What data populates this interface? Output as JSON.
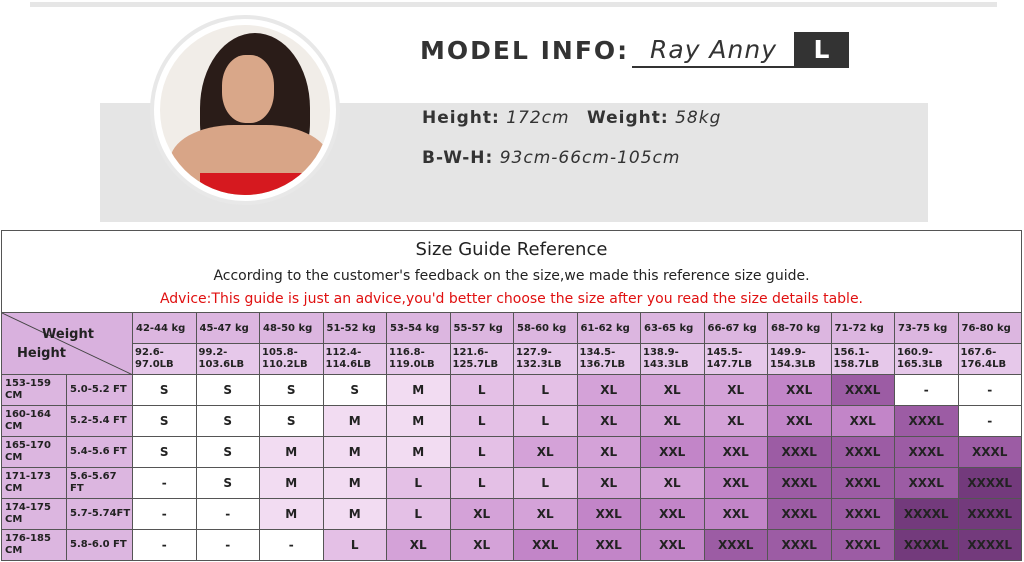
{
  "model": {
    "title": "MODEL INFO:",
    "name": "Ray Anny",
    "size": "L",
    "height_label": "Height:",
    "height": "172cm",
    "weight_label": "Weight:",
    "weight": "58kg",
    "bwh_label": "B-W-H:",
    "bwh": "93cm-66cm-105cm"
  },
  "guide": {
    "title": "Size Guide Reference",
    "subtitle": "According to the customer's feedback on the size,we made this reference size guide.",
    "advice": "Advice:This guide is just an advice,you'd better choose the size after you read the size details table.",
    "corner_weight": "Weight",
    "corner_height": "Height",
    "weights_kg": [
      "42-44 kg",
      "45-47 kg",
      "48-50 kg",
      "51-52 kg",
      "53-54 kg",
      "55-57 kg",
      "58-60 kg",
      "61-62 kg",
      "63-65 kg",
      "66-67 kg",
      "68-70 kg",
      "71-72 kg",
      "73-75 kg",
      "76-80 kg"
    ],
    "weights_lb": [
      "92.6-97.0LB",
      "99.2-103.6LB",
      "105.8-110.2LB",
      "112.4-114.6LB",
      "116.8-119.0LB",
      "121.6-125.7LB",
      "127.9-132.3LB",
      "134.5-136.7LB",
      "138.9-143.3LB",
      "145.5-147.7LB",
      "149.9-154.3LB",
      "156.1-158.7LB",
      "160.9-165.3LB",
      "167.6-176.4LB"
    ],
    "rows": [
      {
        "cm": "153-159 CM",
        "ft": "5.0-5.2 FT",
        "sizes": [
          "S",
          "S",
          "S",
          "S",
          "M",
          "L",
          "L",
          "XL",
          "XL",
          "XL",
          "XXL",
          "XXXL",
          "-",
          "-"
        ]
      },
      {
        "cm": "160-164 CM",
        "ft": "5.2-5.4 FT",
        "sizes": [
          "S",
          "S",
          "S",
          "M",
          "M",
          "L",
          "L",
          "XL",
          "XL",
          "XL",
          "XXL",
          "XXL",
          "XXXL",
          "-"
        ]
      },
      {
        "cm": "165-170 CM",
        "ft": "5.4-5.6 FT",
        "sizes": [
          "S",
          "S",
          "M",
          "M",
          "M",
          "L",
          "XL",
          "XL",
          "XXL",
          "XXL",
          "XXXL",
          "XXXL",
          "XXXL",
          "XXXL"
        ]
      },
      {
        "cm": "171-173 CM",
        "ft": "5.6-5.67 FT",
        "sizes": [
          "-",
          "S",
          "M",
          "M",
          "L",
          "L",
          "L",
          "XL",
          "XL",
          "XXL",
          "XXXL",
          "XXXL",
          "XXXL",
          "XXXXL"
        ]
      },
      {
        "cm": "174-175 CM",
        "ft": "5.7-5.74FT",
        "sizes": [
          "-",
          "-",
          "M",
          "M",
          "L",
          "XL",
          "XL",
          "XXL",
          "XXL",
          "XXL",
          "XXXL",
          "XXXL",
          "XXXXL",
          "XXXXL"
        ]
      },
      {
        "cm": "176-185 CM",
        "ft": "5.8-6.0 FT",
        "sizes": [
          "-",
          "-",
          "-",
          "L",
          "XL",
          "XL",
          "XXL",
          "XXL",
          "XXL",
          "XXXL",
          "XXXL",
          "XXXL",
          "XXXXL",
          "XXXXL"
        ]
      }
    ],
    "size_colors": {
      "-": "#ffffff",
      "S": "#ffffff",
      "M": "#f2dcf2",
      "L": "#e4c0e6",
      "XL": "#d4a2d8",
      "XXL": "#c285c8",
      "XXXL": "#9c5ca4",
      "XXXXL": "#733a7c"
    }
  }
}
